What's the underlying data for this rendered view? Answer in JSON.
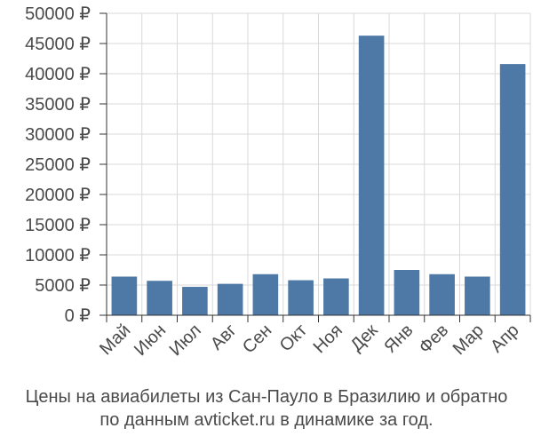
{
  "chart_data": {
    "type": "bar",
    "categories": [
      "Май",
      "Июн",
      "Июл",
      "Авг",
      "Сен",
      "Окт",
      "Ноя",
      "Дек",
      "Янв",
      "Фев",
      "Мар",
      "Апр"
    ],
    "values": [
      6400,
      5700,
      4700,
      5200,
      6800,
      5800,
      6100,
      46300,
      7500,
      6800,
      6400,
      41600
    ],
    "ylim": [
      0,
      50000
    ],
    "yticks": [
      "0 ₽",
      "5000 ₽",
      "10000 ₽",
      "15000 ₽",
      "20000 ₽",
      "25000 ₽",
      "30000 ₽",
      "35000 ₽",
      "40000 ₽",
      "45000 ₽",
      "50000 ₽"
    ],
    "ytick_values": [
      0,
      5000,
      10000,
      15000,
      20000,
      25000,
      30000,
      35000,
      40000,
      45000,
      50000
    ],
    "grid": true,
    "colors": {
      "bar": "#4e79a7",
      "grid": "#d9d9d9",
      "axis": "#333333"
    }
  },
  "caption": {
    "line1": "Цены на авиабилеты из Сан-Пауло в Бразилию и обратно",
    "line2": "по данным avticket.ru в динамике за год."
  }
}
